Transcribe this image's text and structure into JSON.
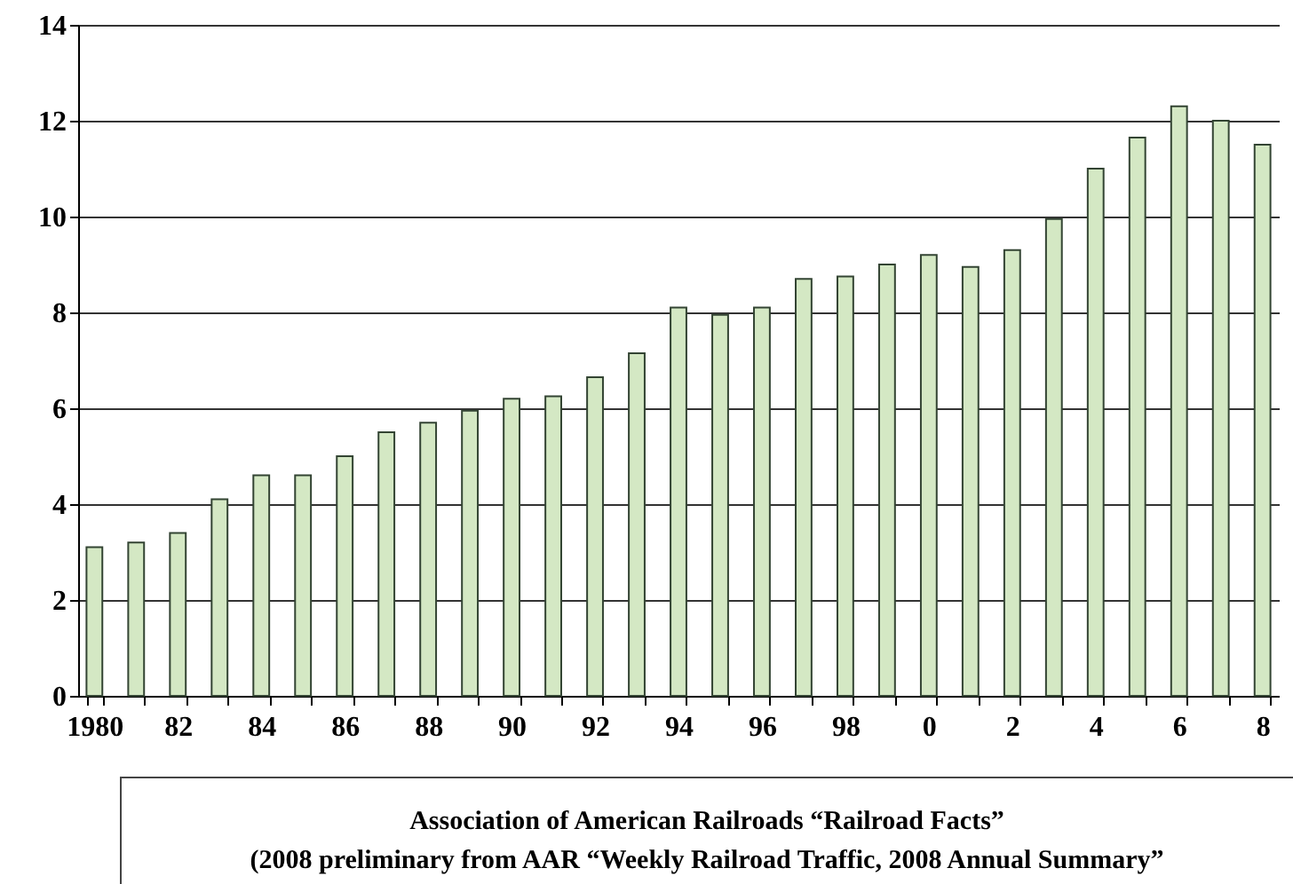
{
  "chart_data": {
    "type": "bar",
    "categories": [
      "1980",
      null,
      "82",
      null,
      "84",
      null,
      "86",
      null,
      "88",
      null,
      "90",
      null,
      "92",
      null,
      "94",
      null,
      "96",
      null,
      "98",
      null,
      "0",
      null,
      "2",
      null,
      "4",
      null,
      "6",
      null,
      "8"
    ],
    "values": [
      3.1,
      3.2,
      3.4,
      4.1,
      4.6,
      4.6,
      5.0,
      5.5,
      5.7,
      5.95,
      6.2,
      6.25,
      6.65,
      7.15,
      8.1,
      7.95,
      8.1,
      8.7,
      8.75,
      9.0,
      9.2,
      8.95,
      9.3,
      9.95,
      11.0,
      11.65,
      12.3,
      12.0,
      11.5
    ],
    "color": "#d4e8c4",
    "ylim": [
      0,
      14
    ],
    "yticks": [
      0,
      2,
      4,
      6,
      8,
      10,
      12,
      14
    ],
    "grid": "y",
    "annotations": [
      "Association of American Railroads “Railroad Facts”",
      "(2008 preliminary from AAR “Weekly Railroad Traffic, 2008 Annual Summary”"
    ]
  }
}
